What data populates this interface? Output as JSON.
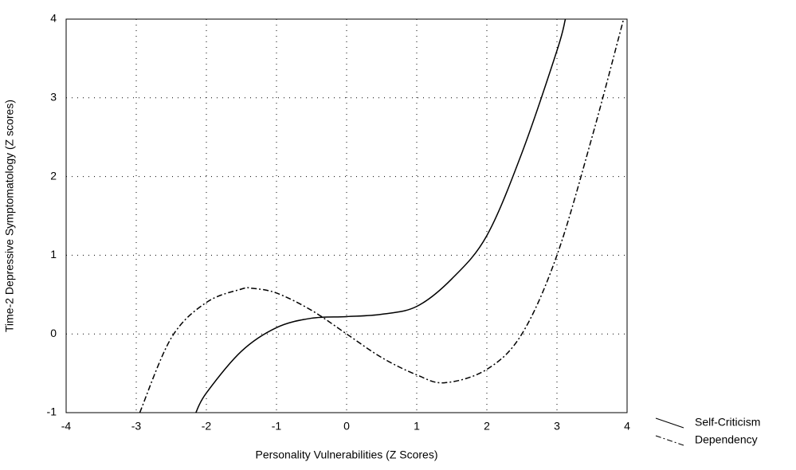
{
  "chart_data": {
    "type": "line",
    "xlabel": "Personality Vulnerabilities (Z Scores)",
    "ylabel": "Time-2 Depressive Symptomatology (Z scores)",
    "xlim": [
      -4,
      4
    ],
    "xticks": [
      -4,
      -3,
      -2,
      -1,
      0,
      1,
      2,
      3,
      4
    ],
    "ylim": [
      -1,
      4
    ],
    "yticks": [
      -1,
      0,
      1,
      2,
      3,
      4
    ],
    "grid": true,
    "legend": "lower right",
    "series": [
      {
        "name": "Self-Criticism",
        "color": "#000000",
        "dash": "solid",
        "x": [
          -2.15,
          -2,
          -1.5,
          -1,
          -0.5,
          0,
          0.5,
          1,
          1.5,
          2,
          2.5,
          3,
          3.12
        ],
        "values": [
          -1,
          -0.75,
          -0.22,
          0.08,
          0.2,
          0.22,
          0.25,
          0.35,
          0.7,
          1.25,
          2.3,
          3.6,
          4
        ]
      },
      {
        "name": "Dependency",
        "color": "#000000",
        "dash": "dashdot",
        "x": [
          -2.95,
          -2.5,
          -2,
          -1.5,
          -1.35,
          -1,
          -0.5,
          0,
          0.5,
          1,
          1.4,
          2,
          2.5,
          3,
          3.5,
          3.95
        ],
        "values": [
          -1,
          -0.05,
          0.4,
          0.57,
          0.58,
          0.52,
          0.3,
          0,
          -0.3,
          -0.52,
          -0.62,
          -0.45,
          0,
          1,
          2.5,
          4
        ]
      }
    ]
  }
}
